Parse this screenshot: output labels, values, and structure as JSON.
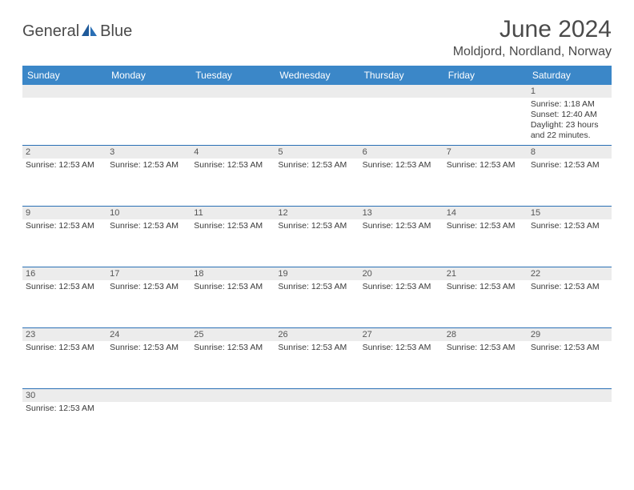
{
  "logo": {
    "part1": "General",
    "part2": "Blue"
  },
  "title": "June 2024",
  "location": "Moldjord, Nordland, Norway",
  "colors": {
    "header_bg": "#3b87c8",
    "border": "#2a6fb5",
    "daynum_bg": "#ececec",
    "text": "#3a3a3a",
    "title_text": "#4a4a4a"
  },
  "dayHeaders": [
    "Sunday",
    "Monday",
    "Tuesday",
    "Wednesday",
    "Thursday",
    "Friday",
    "Saturday"
  ],
  "weeks": [
    [
      {
        "n": "",
        "lines": []
      },
      {
        "n": "",
        "lines": []
      },
      {
        "n": "",
        "lines": []
      },
      {
        "n": "",
        "lines": []
      },
      {
        "n": "",
        "lines": []
      },
      {
        "n": "",
        "lines": []
      },
      {
        "n": "1",
        "lines": [
          "Sunrise: 1:18 AM",
          "Sunset: 12:40 AM",
          "Daylight: 23 hours and 22 minutes."
        ]
      }
    ],
    [
      {
        "n": "2",
        "lines": [
          "Sunrise: 12:53 AM"
        ]
      },
      {
        "n": "3",
        "lines": [
          "Sunrise: 12:53 AM"
        ]
      },
      {
        "n": "4",
        "lines": [
          "Sunrise: 12:53 AM"
        ]
      },
      {
        "n": "5",
        "lines": [
          "Sunrise: 12:53 AM"
        ]
      },
      {
        "n": "6",
        "lines": [
          "Sunrise: 12:53 AM"
        ]
      },
      {
        "n": "7",
        "lines": [
          "Sunrise: 12:53 AM"
        ]
      },
      {
        "n": "8",
        "lines": [
          "Sunrise: 12:53 AM"
        ]
      }
    ],
    [
      {
        "n": "9",
        "lines": [
          "Sunrise: 12:53 AM"
        ]
      },
      {
        "n": "10",
        "lines": [
          "Sunrise: 12:53 AM"
        ]
      },
      {
        "n": "11",
        "lines": [
          "Sunrise: 12:53 AM"
        ]
      },
      {
        "n": "12",
        "lines": [
          "Sunrise: 12:53 AM"
        ]
      },
      {
        "n": "13",
        "lines": [
          "Sunrise: 12:53 AM"
        ]
      },
      {
        "n": "14",
        "lines": [
          "Sunrise: 12:53 AM"
        ]
      },
      {
        "n": "15",
        "lines": [
          "Sunrise: 12:53 AM"
        ]
      }
    ],
    [
      {
        "n": "16",
        "lines": [
          "Sunrise: 12:53 AM"
        ]
      },
      {
        "n": "17",
        "lines": [
          "Sunrise: 12:53 AM"
        ]
      },
      {
        "n": "18",
        "lines": [
          "Sunrise: 12:53 AM"
        ]
      },
      {
        "n": "19",
        "lines": [
          "Sunrise: 12:53 AM"
        ]
      },
      {
        "n": "20",
        "lines": [
          "Sunrise: 12:53 AM"
        ]
      },
      {
        "n": "21",
        "lines": [
          "Sunrise: 12:53 AM"
        ]
      },
      {
        "n": "22",
        "lines": [
          "Sunrise: 12:53 AM"
        ]
      }
    ],
    [
      {
        "n": "23",
        "lines": [
          "Sunrise: 12:53 AM"
        ]
      },
      {
        "n": "24",
        "lines": [
          "Sunrise: 12:53 AM"
        ]
      },
      {
        "n": "25",
        "lines": [
          "Sunrise: 12:53 AM"
        ]
      },
      {
        "n": "26",
        "lines": [
          "Sunrise: 12:53 AM"
        ]
      },
      {
        "n": "27",
        "lines": [
          "Sunrise: 12:53 AM"
        ]
      },
      {
        "n": "28",
        "lines": [
          "Sunrise: 12:53 AM"
        ]
      },
      {
        "n": "29",
        "lines": [
          "Sunrise: 12:53 AM"
        ]
      }
    ],
    [
      {
        "n": "30",
        "lines": [
          "Sunrise: 12:53 AM"
        ]
      },
      {
        "n": "",
        "lines": []
      },
      {
        "n": "",
        "lines": []
      },
      {
        "n": "",
        "lines": []
      },
      {
        "n": "",
        "lines": []
      },
      {
        "n": "",
        "lines": []
      },
      {
        "n": "",
        "lines": []
      }
    ]
  ]
}
